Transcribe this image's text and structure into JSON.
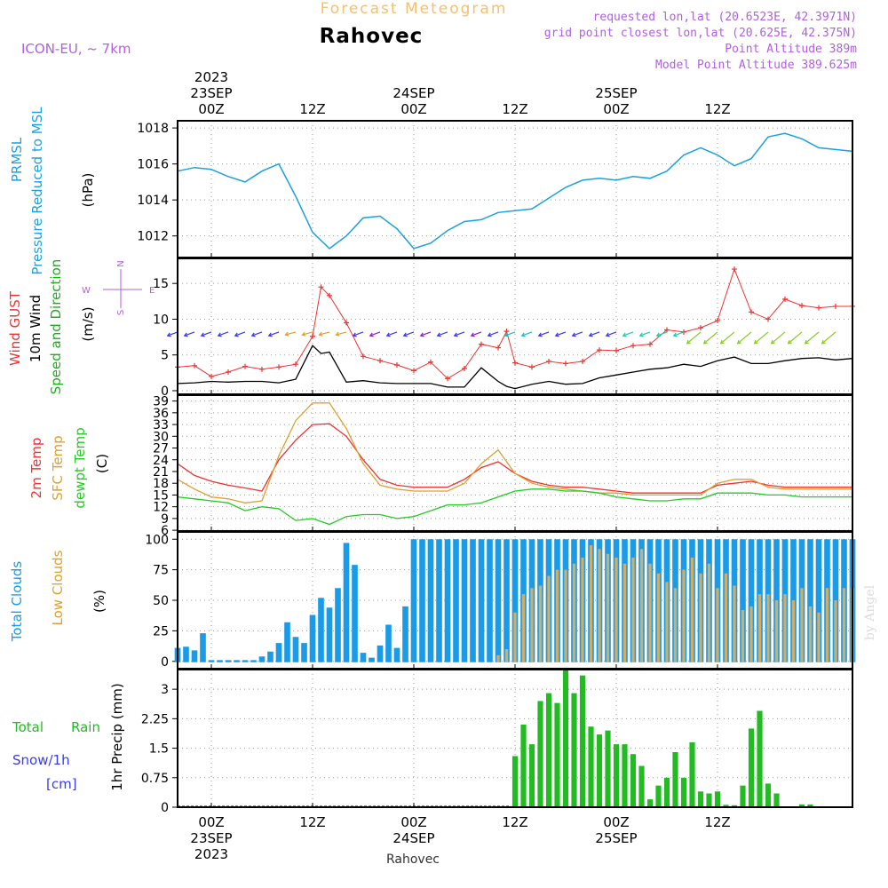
{
  "header": {
    "product_title": "Forecast Meteogram",
    "location": "Rahovec",
    "model": "ICON-EU, ~ 7km",
    "requested": "requested lon,lat (20.6523E, 42.3971N)",
    "grid_point": "grid point closest lon,lat (20.625E, 42.375N)",
    "point_altitude": "Point Altitude 389m",
    "model_point_altitude": "Model Point Altitude 389.625m",
    "footer_location": "Rahovec",
    "credit": "by Angel"
  },
  "time_axis": {
    "top": [
      {
        "t": 0,
        "lines": [
          "2023",
          "23SEP",
          "00Z"
        ]
      },
      {
        "t": 12,
        "lines": [
          "12Z"
        ]
      },
      {
        "t": 24,
        "lines": [
          "24SEP",
          "00Z"
        ]
      },
      {
        "t": 36,
        "lines": [
          "12Z"
        ]
      },
      {
        "t": 48,
        "lines": [
          "25SEP",
          "00Z"
        ]
      },
      {
        "t": 60,
        "lines": [
          "12Z"
        ]
      }
    ],
    "bottom": [
      {
        "t": 0,
        "lines": [
          "00Z",
          "23SEP",
          "2023"
        ]
      },
      {
        "t": 12,
        "lines": [
          "12Z"
        ]
      },
      {
        "t": 24,
        "lines": [
          "00Z",
          "24SEP"
        ]
      },
      {
        "t": 36,
        "lines": [
          "12Z"
        ]
      },
      {
        "t": 48,
        "lines": [
          "00Z",
          "25SEP"
        ]
      },
      {
        "t": 60,
        "lines": [
          "12Z"
        ]
      }
    ]
  },
  "colors": {
    "pressure": "#1ba1e2",
    "gust": "#ee3333",
    "wind": "#000000",
    "direction": "#22aa22",
    "t2m": "#ee3333",
    "sfc": "#e0a030",
    "dewpt": "#22cc22",
    "total_clouds": "#1a9be8",
    "low_clouds": "#cfae6a",
    "rain": "#22bb22",
    "snow": "#3a3aee",
    "purple": "#b060e0",
    "title_orange": "#f5c070"
  },
  "panels": {
    "pressure": {
      "labels": [
        "PRMSL",
        "Pressure Reduced to MSL"
      ],
      "unit": "(hPa)"
    },
    "wind": {
      "labels": [
        "Wind GUST",
        "10m Wind",
        "Speed and Direction"
      ],
      "unit": "(m/s)",
      "compass": {
        "n": "N",
        "s": "S",
        "w": "W",
        "e": "E"
      }
    },
    "temp": {
      "labels": [
        "2m Temp",
        "SFC Temp",
        "dewpt Temp"
      ],
      "unit": "(C)"
    },
    "clouds": {
      "labels": [
        "Total Clouds",
        "Low Clouds"
      ],
      "unit": "(%)"
    },
    "precip": {
      "labels": [
        "Total",
        "Rain",
        "Snow/1h",
        "[cm]"
      ],
      "axis_label": "1hr Precip (mm)"
    }
  },
  "chart_data": [
    {
      "type": "line",
      "title": "PRMSL Pressure Reduced to MSL",
      "ylabel": "(hPa)",
      "ylim": [
        1010.8,
        1018.4
      ],
      "yticks": [
        1012,
        1014,
        1016,
        1018
      ],
      "x_hours": [
        -4,
        -2,
        0,
        2,
        4,
        6,
        8,
        10,
        12,
        14,
        16,
        18,
        20,
        22,
        24,
        26,
        28,
        30,
        32,
        34,
        36,
        38,
        40,
        42,
        44,
        46,
        48,
        50,
        52,
        54,
        56,
        58,
        60,
        62,
        64,
        66,
        68,
        70,
        72,
        74,
        76
      ],
      "series": [
        {
          "name": "PRMSL",
          "values": [
            1015.6,
            1015.8,
            1015.7,
            1015.3,
            1015.0,
            1015.6,
            1016.0,
            1014.2,
            1012.2,
            1011.3,
            1012.0,
            1013.0,
            1013.1,
            1012.4,
            1011.3,
            1011.6,
            1012.3,
            1012.8,
            1012.9,
            1013.3,
            1013.4,
            1013.5,
            1014.1,
            1014.7,
            1015.1,
            1015.2,
            1015.1,
            1015.3,
            1015.2,
            1015.6,
            1016.5,
            1016.9,
            1016.5,
            1015.9,
            1016.3,
            1017.5,
            1017.7,
            1017.4,
            1016.9,
            1016.8,
            1016.7
          ]
        }
      ]
    },
    {
      "type": "line",
      "title": "Wind GUST / 10m Wind Speed and Direction",
      "ylabel": "(m/s)",
      "ylim": [
        -0.5,
        18.5
      ],
      "yticks": [
        0,
        5,
        10,
        15
      ],
      "x_hours": [
        -4,
        -2,
        0,
        2,
        4,
        6,
        8,
        10,
        12,
        13,
        14,
        16,
        18,
        20,
        22,
        24,
        26,
        28,
        30,
        32,
        34,
        35,
        36,
        38,
        40,
        42,
        44,
        46,
        48,
        50,
        52,
        54,
        56,
        58,
        60,
        62,
        64,
        66,
        68,
        70,
        72,
        74,
        76
      ],
      "series": [
        {
          "name": "Wind GUST",
          "values": [
            3.3,
            3.5,
            2.0,
            2.6,
            3.4,
            3.0,
            3.3,
            3.7,
            7.6,
            14.5,
            13.3,
            9.5,
            4.8,
            4.2,
            3.6,
            2.8,
            4.0,
            1.7,
            3.1,
            6.5,
            6.0,
            8.3,
            3.9,
            3.3,
            4.1,
            3.8,
            4.1,
            5.7,
            5.6,
            6.3,
            6.5,
            8.5,
            8.2,
            8.8,
            9.8,
            17.0,
            11.0,
            10.0,
            12.8,
            11.9,
            11.6,
            11.8,
            11.8
          ]
        },
        {
          "name": "10m Wind",
          "values": [
            1.0,
            1.1,
            1.3,
            1.2,
            1.3,
            1.3,
            1.1,
            1.6,
            6.3,
            5.2,
            5.4,
            1.2,
            1.4,
            1.1,
            1.0,
            1.0,
            1.0,
            0.5,
            0.5,
            3.2,
            1.3,
            0.6,
            0.3,
            0.9,
            1.3,
            0.9,
            1.0,
            1.8,
            2.2,
            2.6,
            3.0,
            3.2,
            3.7,
            3.4,
            4.2,
            4.7,
            3.8,
            3.8,
            4.2,
            4.5,
            4.6,
            4.3,
            4.5
          ]
        }
      ]
    },
    {
      "type": "line",
      "title": "2m Temp / SFC Temp / dewpt Temp",
      "ylabel": "(C)",
      "ylim": [
        5.8,
        40.5
      ],
      "yticks": [
        6,
        9,
        12,
        15,
        18,
        21,
        24,
        27,
        30,
        33,
        36,
        39
      ],
      "x_hours": [
        -4,
        -2,
        0,
        2,
        4,
        6,
        8,
        10,
        12,
        14,
        16,
        18,
        20,
        22,
        24,
        26,
        28,
        30,
        32,
        34,
        36,
        38,
        40,
        42,
        44,
        46,
        48,
        50,
        52,
        54,
        56,
        58,
        60,
        62,
        64,
        66,
        68,
        70,
        72,
        74,
        76
      ],
      "series": [
        {
          "name": "2m Temp",
          "values": [
            23.0,
            20.0,
            18.5,
            17.5,
            16.8,
            16.0,
            24.0,
            29.0,
            33.0,
            33.2,
            30.0,
            24.0,
            19.0,
            17.5,
            17.0,
            17.0,
            17.0,
            19.0,
            22.0,
            23.5,
            20.5,
            18.5,
            17.5,
            17.0,
            17.0,
            16.5,
            16.0,
            15.5,
            15.5,
            15.5,
            15.5,
            15.5,
            17.5,
            18.0,
            18.5,
            17.5,
            17.0,
            17.0,
            17.0,
            17.0,
            17.0
          ]
        },
        {
          "name": "SFC Temp",
          "values": [
            19.0,
            16.5,
            14.5,
            14.0,
            13.0,
            13.5,
            25.0,
            34.0,
            38.5,
            38.5,
            32.0,
            23.0,
            17.5,
            16.5,
            16.0,
            16.0,
            16.0,
            18.0,
            23.0,
            26.5,
            20.5,
            18.0,
            17.0,
            16.5,
            16.0,
            15.5,
            15.5,
            15.0,
            15.0,
            15.0,
            15.0,
            15.0,
            18.0,
            19.0,
            19.0,
            17.0,
            16.5,
            16.5,
            16.5,
            16.5,
            16.5
          ]
        },
        {
          "name": "dewpt Temp",
          "values": [
            14.5,
            14.0,
            13.5,
            13.0,
            11.0,
            12.0,
            11.5,
            8.5,
            9.0,
            7.5,
            9.5,
            10.0,
            10.0,
            9.0,
            9.5,
            11.0,
            12.5,
            12.5,
            13.0,
            14.5,
            16.0,
            16.5,
            16.5,
            16.0,
            16.0,
            15.5,
            14.5,
            14.0,
            13.5,
            13.5,
            14.0,
            14.0,
            15.5,
            15.5,
            15.5,
            15.0,
            15.0,
            14.5,
            14.5,
            14.5,
            14.5
          ]
        }
      ]
    },
    {
      "type": "bar",
      "title": "Total Clouds / Low Clouds",
      "ylabel": "(%)",
      "ylim": [
        -6,
        106
      ],
      "yticks": [
        0,
        25,
        50,
        75,
        100
      ],
      "x_hours": [
        -4,
        -3,
        -2,
        -1,
        0,
        1,
        2,
        3,
        4,
        5,
        6,
        7,
        8,
        9,
        10,
        11,
        12,
        13,
        14,
        15,
        16,
        17,
        18,
        19,
        20,
        21,
        22,
        23,
        24,
        25,
        26,
        27,
        28,
        29,
        30,
        31,
        32,
        33,
        34,
        35,
        36,
        37,
        38,
        39,
        40,
        41,
        42,
        43,
        44,
        45,
        46,
        47,
        48,
        49,
        50,
        51,
        52,
        53,
        54,
        55,
        56,
        57,
        58,
        59,
        60,
        61,
        62,
        63,
        64,
        65,
        66,
        67,
        68,
        69,
        70,
        71,
        72,
        73,
        74,
        75,
        76
      ],
      "series": [
        {
          "name": "Total Clouds",
          "values": [
            11,
            12,
            9,
            23,
            1,
            1,
            1,
            1,
            1,
            1,
            4,
            8,
            15,
            32,
            20,
            15,
            38,
            52,
            44,
            60,
            97,
            79,
            7,
            3,
            13,
            30,
            11,
            45,
            100,
            100,
            100,
            100,
            100,
            100,
            100,
            100,
            100,
            100,
            100,
            100,
            100,
            100,
            100,
            100,
            100,
            100,
            100,
            100,
            100,
            100,
            100,
            100,
            100,
            100,
            100,
            100,
            100,
            100,
            100,
            100,
            100,
            100,
            100,
            100,
            100,
            100,
            100,
            100,
            100,
            100,
            100,
            100,
            100,
            100,
            100,
            100,
            100,
            100,
            100,
            100,
            100
          ]
        },
        {
          "name": "Low Clouds",
          "values": [
            0,
            0,
            0,
            0,
            0,
            0,
            0,
            0,
            0,
            0,
            0,
            0,
            0,
            0,
            0,
            0,
            0,
            0,
            0,
            0,
            0,
            0,
            0,
            0,
            0,
            0,
            0,
            0,
            0,
            0,
            0,
            0,
            0,
            0,
            0,
            0,
            0,
            0,
            5,
            10,
            40,
            55,
            60,
            62,
            70,
            75,
            75,
            80,
            85,
            95,
            92,
            88,
            85,
            80,
            85,
            92,
            80,
            72,
            65,
            60,
            75,
            85,
            72,
            80,
            60,
            72,
            62,
            42,
            45,
            55,
            55,
            50,
            55,
            50,
            60,
            45,
            40,
            60,
            50,
            60,
            60
          ]
        }
      ]
    },
    {
      "type": "bar",
      "title": "1hr Precip",
      "ylabel": "1hr Precip (mm)",
      "ylim": [
        0,
        3.5
      ],
      "yticks": [
        0,
        0.75,
        1.5,
        2.25,
        3
      ],
      "x_hours": [
        36,
        37,
        38,
        39,
        40,
        41,
        42,
        43,
        44,
        45,
        46,
        47,
        48,
        49,
        50,
        51,
        52,
        53,
        54,
        55,
        56,
        57,
        58,
        59,
        60,
        61,
        62,
        63,
        64,
        65,
        66,
        67,
        68,
        69,
        70,
        71,
        72,
        73,
        74,
        75,
        76
      ],
      "series": [
        {
          "name": "Total Rain",
          "values": [
            1.3,
            2.1,
            1.6,
            2.7,
            2.9,
            2.65,
            3.5,
            2.9,
            3.35,
            2.05,
            1.85,
            1.95,
            1.6,
            1.6,
            1.35,
            1.05,
            0.2,
            0.55,
            0.75,
            1.4,
            0.75,
            1.65,
            0.4,
            0.35,
            0.4,
            0.06,
            0.05,
            0.55,
            2.0,
            2.45,
            0.6,
            0.35,
            0.02,
            0.02,
            0.07,
            0.07,
            0.0,
            0.0,
            0.0,
            0.0,
            0.0
          ]
        }
      ]
    }
  ]
}
